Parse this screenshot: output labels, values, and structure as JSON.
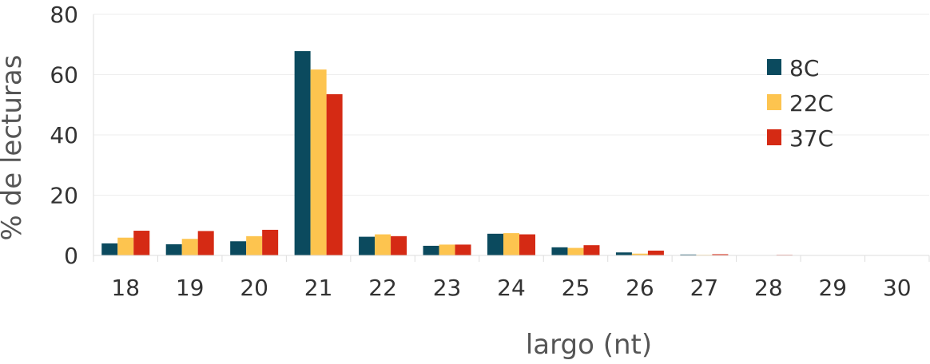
{
  "chart_data": {
    "type": "bar",
    "title": "",
    "xlabel": "largo (nt)",
    "ylabel": "% de lecturas",
    "ylim": [
      0,
      80
    ],
    "yticks": [
      "0",
      "20",
      "40",
      "60",
      "80"
    ],
    "categories": [
      "18",
      "19",
      "20",
      "21",
      "22",
      "23",
      "24",
      "25",
      "26",
      "27",
      "28",
      "29",
      "30"
    ],
    "series": [
      {
        "name": "8C",
        "color": "#0b4a5e",
        "values": [
          4.0,
          3.7,
          4.7,
          67.8,
          6.2,
          3.2,
          7.2,
          2.7,
          1.0,
          0.3,
          0.1,
          0.05,
          0.05
        ]
      },
      {
        "name": "22C",
        "color": "#fdc44f",
        "values": [
          5.9,
          5.5,
          6.4,
          61.7,
          7.0,
          3.6,
          7.4,
          2.5,
          0.6,
          0.2,
          0.1,
          0.05,
          0.05
        ]
      },
      {
        "name": "37C",
        "color": "#d52a14",
        "values": [
          8.2,
          8.1,
          8.5,
          53.5,
          6.4,
          3.6,
          7.0,
          3.4,
          1.6,
          0.4,
          0.2,
          0.1,
          0.1
        ]
      }
    ],
    "grid": true,
    "legend_position": "top-right"
  }
}
